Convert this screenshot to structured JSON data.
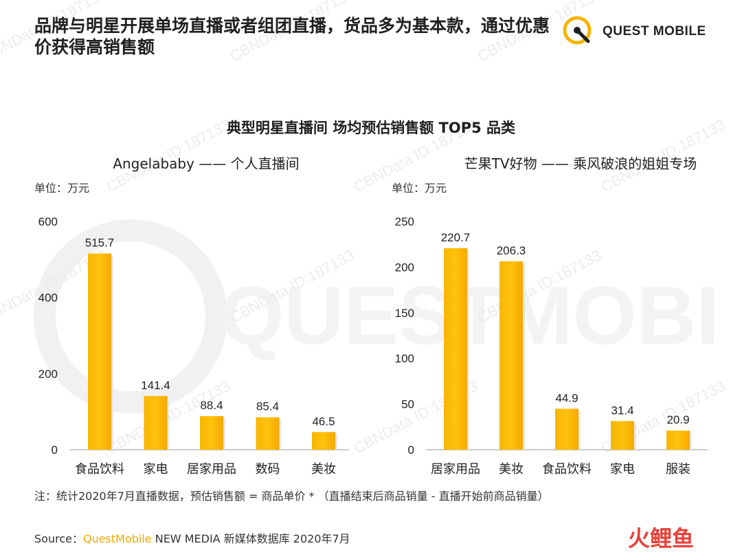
{
  "header": {
    "headline": "品牌与明星开展单场直播或者组团直播，货品多为基本款，通过优惠价获得高销售额",
    "logo_text": "QUEST MOBILE"
  },
  "main_title": "典型明星直播间 场均预估销售额 TOP5 品类",
  "watermark": {
    "text": "CBNData ID:187133",
    "big_text": "QUESTMOBILE"
  },
  "chart_data": [
    {
      "type": "bar",
      "title": "Angelababy —— 个人直播间",
      "unit_label": "单位：万元",
      "categories": [
        "食品饮料",
        "家电",
        "居家用品",
        "数码",
        "美妆"
      ],
      "values": [
        515.7,
        141.4,
        88.4,
        85.4,
        46.5
      ],
      "value_labels": [
        "515.7",
        "141.4",
        "88.4",
        "85.4",
        "46.5"
      ],
      "yticks": [
        "0",
        "200",
        "400",
        "600"
      ],
      "ylim": [
        0,
        600
      ],
      "grid": false,
      "bar_color": "#ffc20e"
    },
    {
      "type": "bar",
      "title": "芒果TV好物 —— 乘风破浪的姐姐专场",
      "unit_label": "单位：万元",
      "categories": [
        "居家用品",
        "美妆",
        "食品饮料",
        "家电",
        "服装"
      ],
      "values": [
        220.7,
        206.3,
        44.9,
        31.4,
        20.9
      ],
      "value_labels": [
        "220.7",
        "206.3",
        "44.9",
        "31.4",
        "20.9"
      ],
      "yticks": [
        "0",
        "50",
        "100",
        "150",
        "200",
        "250"
      ],
      "ylim": [
        0,
        250
      ],
      "grid": false,
      "bar_color": "#ffc20e"
    }
  ],
  "footer": {
    "note": "注：统计2020年7月直播数据，预估销售额 = 商品单价 * （直播结束后商品销量 - 直播开始前商品销量）",
    "source_prefix": "Source：",
    "source_brand": "QuestMobile",
    "source_suffix": " NEW MEDIA 新媒体数据库 2020年7月",
    "corner_logo_text": "火鲤鱼"
  }
}
